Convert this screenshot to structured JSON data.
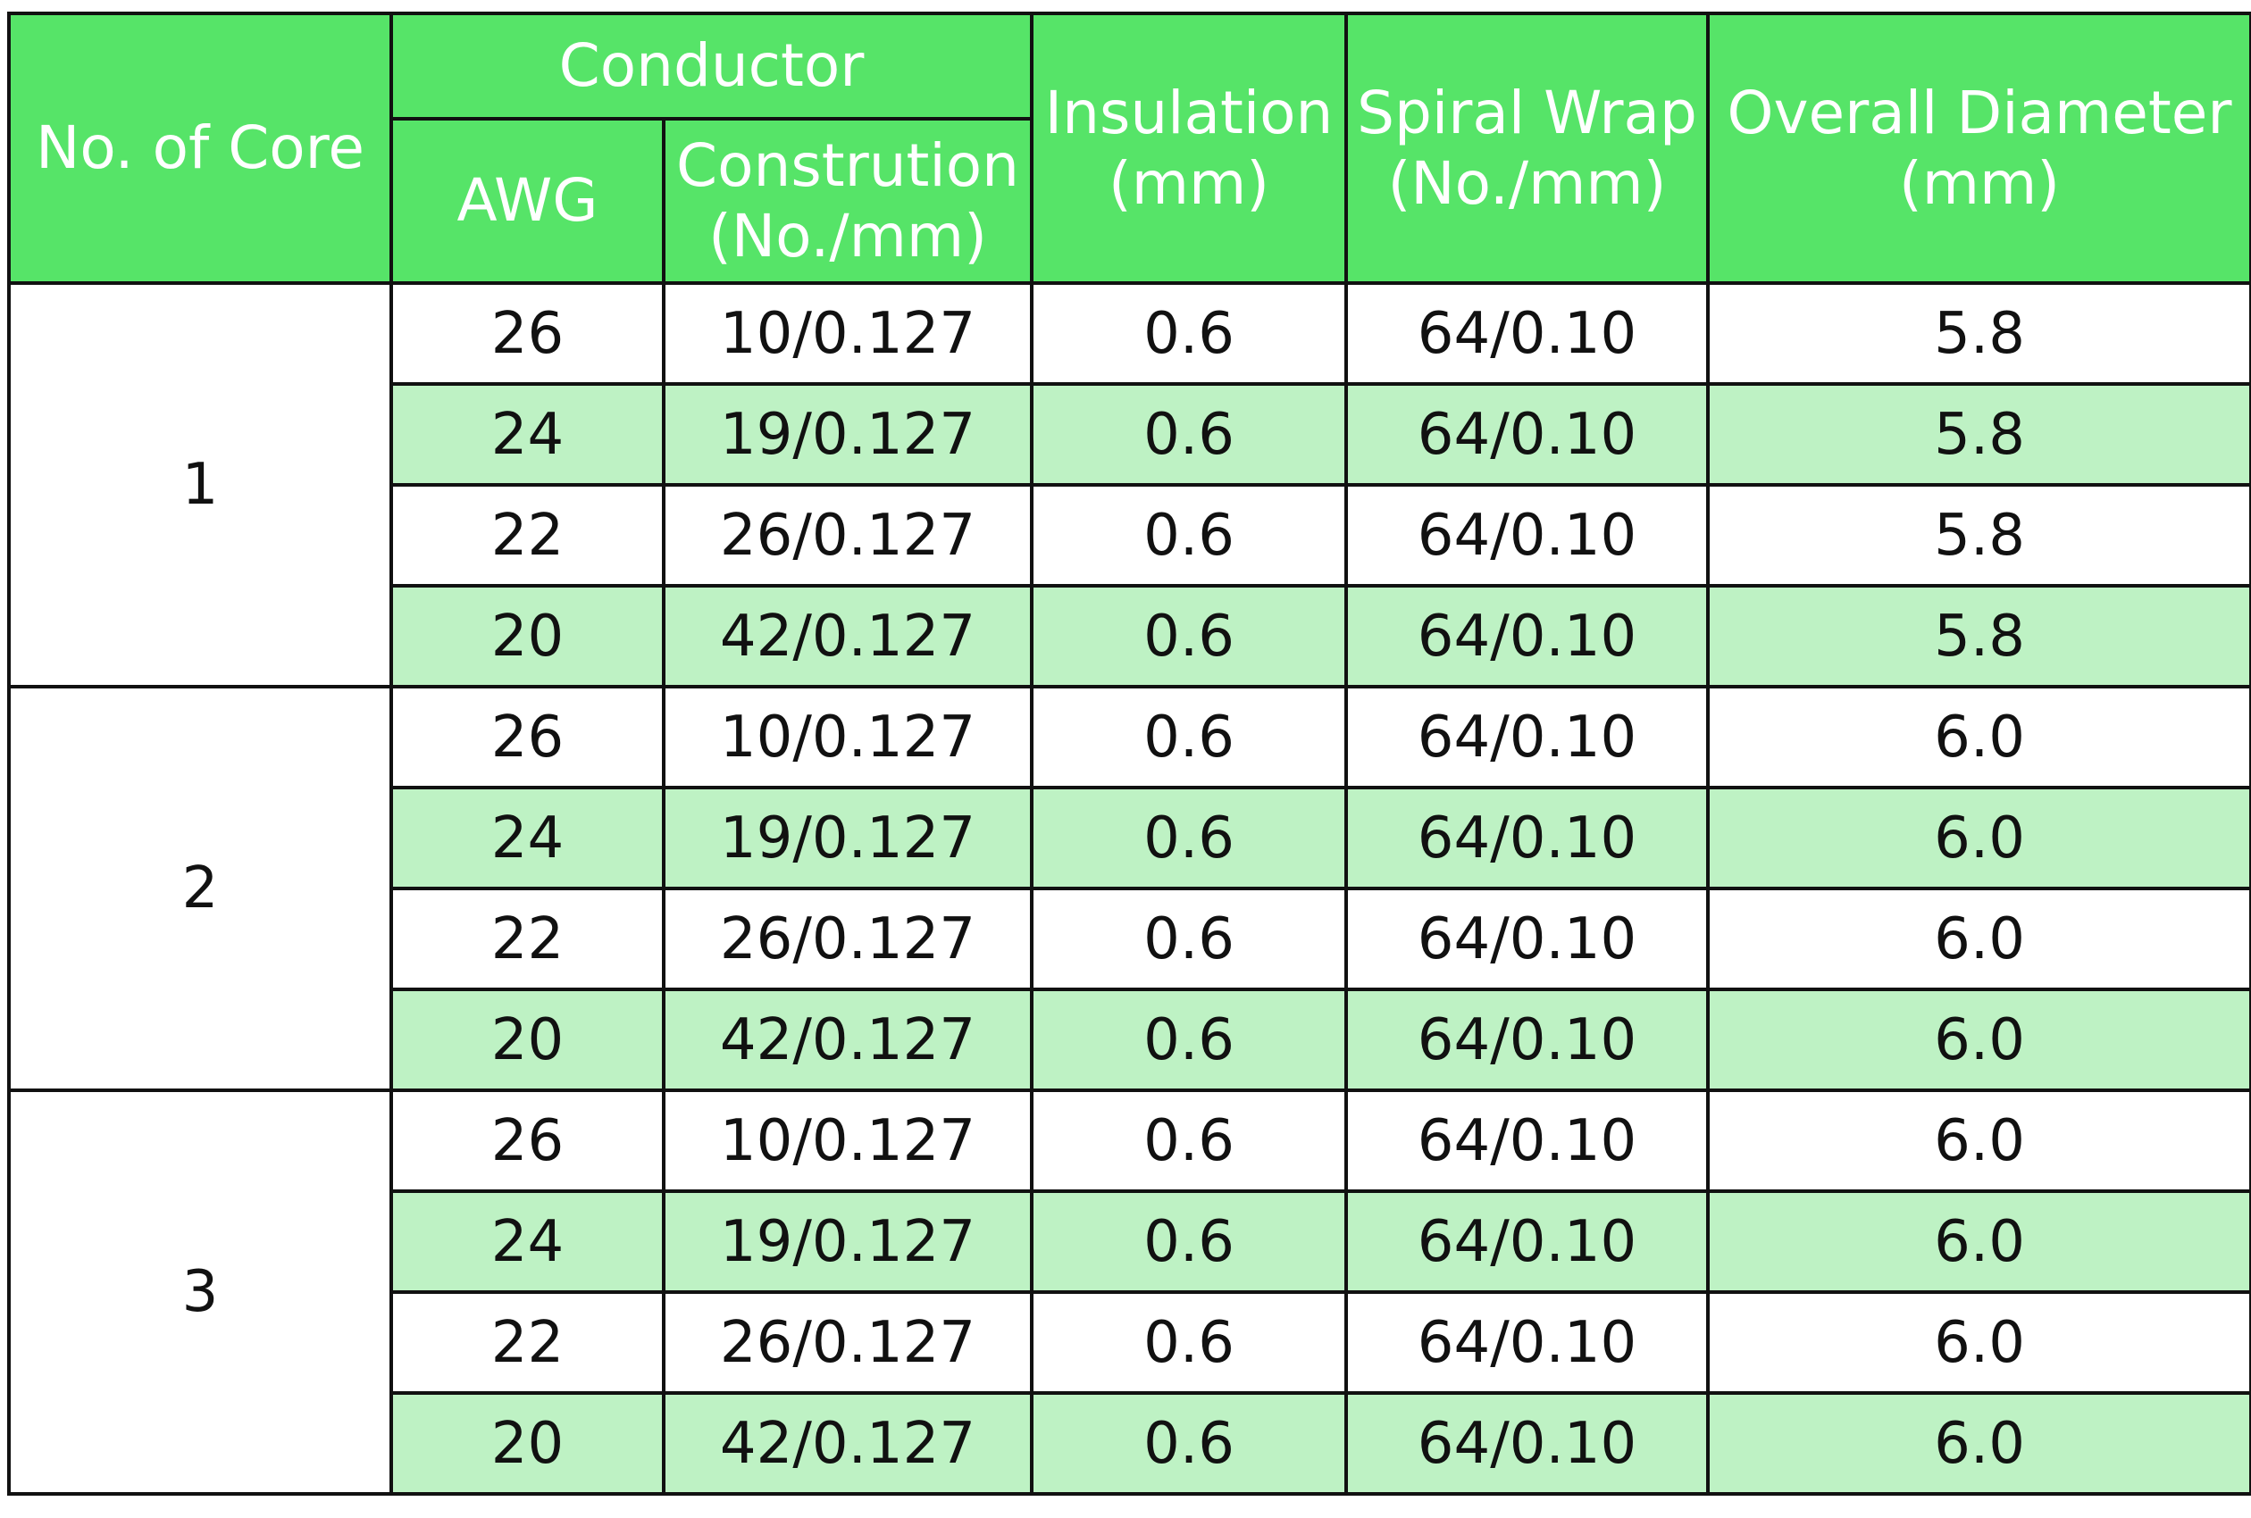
{
  "header": {
    "core": "No. of Core",
    "conductor": "Conductor",
    "awg": "AWG",
    "construction_line1": "Constrution",
    "construction_line2": "(No./mm)",
    "insulation_line1": "Insulation",
    "insulation_line2": "(mm)",
    "spiral_line1": "Spiral Wrap",
    "spiral_line2": "(No./mm)",
    "diameter_line1": "Overall Diameter",
    "diameter_line2": "(mm)"
  },
  "colors": {
    "header_bg": "#56e468",
    "row_alt_bg": "#bef2c4"
  },
  "groups": [
    {
      "core": "1",
      "rows": [
        {
          "awg": "26",
          "construction": "10/0.127",
          "insulation": "0.6",
          "spiral": "64/0.10",
          "diameter": "5.8"
        },
        {
          "awg": "24",
          "construction": "19/0.127",
          "insulation": "0.6",
          "spiral": "64/0.10",
          "diameter": "5.8"
        },
        {
          "awg": "22",
          "construction": "26/0.127",
          "insulation": "0.6",
          "spiral": "64/0.10",
          "diameter": "5.8"
        },
        {
          "awg": "20",
          "construction": "42/0.127",
          "insulation": "0.6",
          "spiral": "64/0.10",
          "diameter": "5.8"
        }
      ]
    },
    {
      "core": "2",
      "rows": [
        {
          "awg": "26",
          "construction": "10/0.127",
          "insulation": "0.6",
          "spiral": "64/0.10",
          "diameter": "6.0"
        },
        {
          "awg": "24",
          "construction": "19/0.127",
          "insulation": "0.6",
          "spiral": "64/0.10",
          "diameter": "6.0"
        },
        {
          "awg": "22",
          "construction": "26/0.127",
          "insulation": "0.6",
          "spiral": "64/0.10",
          "diameter": "6.0"
        },
        {
          "awg": "20",
          "construction": "42/0.127",
          "insulation": "0.6",
          "spiral": "64/0.10",
          "diameter": "6.0"
        }
      ]
    },
    {
      "core": "3",
      "rows": [
        {
          "awg": "26",
          "construction": "10/0.127",
          "insulation": "0.6",
          "spiral": "64/0.10",
          "diameter": "6.0"
        },
        {
          "awg": "24",
          "construction": "19/0.127",
          "insulation": "0.6",
          "spiral": "64/0.10",
          "diameter": "6.0"
        },
        {
          "awg": "22",
          "construction": "26/0.127",
          "insulation": "0.6",
          "spiral": "64/0.10",
          "diameter": "6.0"
        },
        {
          "awg": "20",
          "construction": "42/0.127",
          "insulation": "0.6",
          "spiral": "64/0.10",
          "diameter": "6.0"
        }
      ]
    }
  ]
}
